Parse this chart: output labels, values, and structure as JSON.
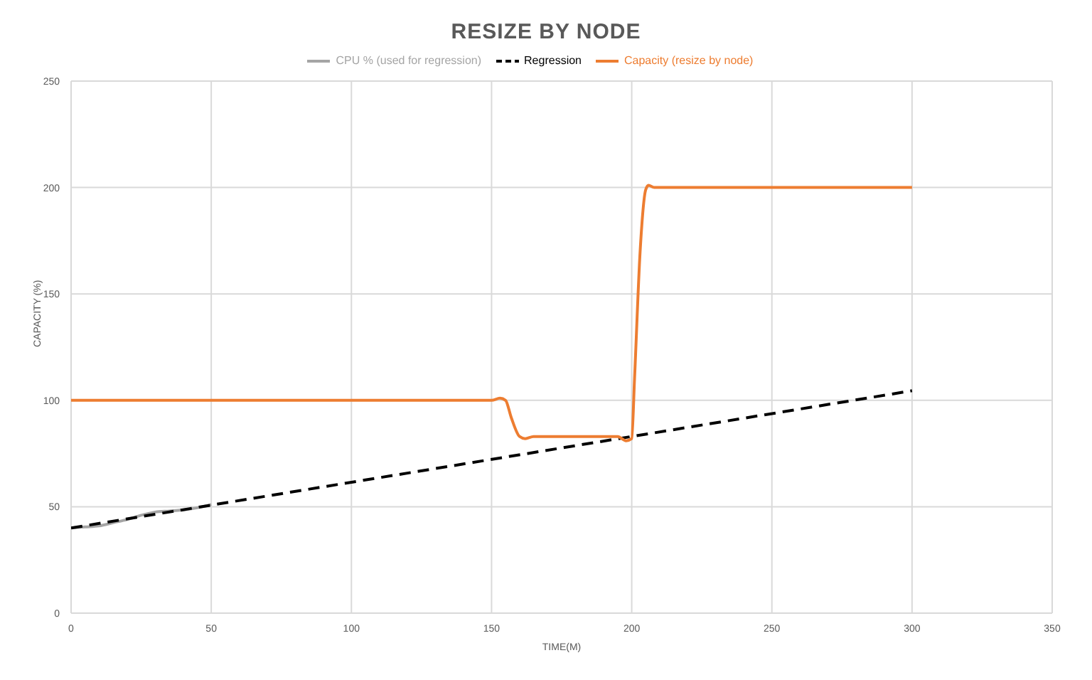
{
  "chart_data": {
    "type": "line",
    "title": "RESIZE BY NODE",
    "xlabel": "TIME(M)",
    "ylabel": "CAPACITY (%)",
    "xlim": [
      0,
      350
    ],
    "xticks": [
      0,
      50,
      100,
      150,
      200,
      250,
      300,
      350
    ],
    "ylim": [
      0,
      250
    ],
    "yticks": [
      0,
      50,
      100,
      150,
      200,
      250
    ],
    "grid": true,
    "legend": "top",
    "marker": "none",
    "series": [
      {
        "name": "CPU % (used for regression)",
        "color": "#a5a5a5",
        "line_style": "solid",
        "x": [
          0,
          5,
          10,
          15,
          20,
          25,
          30,
          35,
          40,
          45,
          50
        ],
        "values": [
          40,
          40.5,
          41,
          42.5,
          44,
          46,
          47.5,
          48,
          48.5,
          49.5,
          51
        ]
      },
      {
        "name": "Regression",
        "color": "#000000",
        "line_style": "dashed",
        "x": [
          0,
          300
        ],
        "values": [
          40,
          104.5
        ]
      },
      {
        "name": "Capacity (resize by node)",
        "color": "#ed7d31",
        "line_style": "solid",
        "x": [
          0,
          150,
          153,
          155,
          157,
          160,
          162,
          165,
          170,
          195,
          198,
          200,
          201,
          203,
          205,
          206,
          208,
          210,
          250,
          300
        ],
        "values": [
          100,
          100,
          101,
          100,
          92,
          83,
          82,
          83,
          83,
          83,
          81,
          82,
          110,
          170,
          199,
          201,
          200,
          200,
          200,
          200
        ]
      }
    ]
  }
}
